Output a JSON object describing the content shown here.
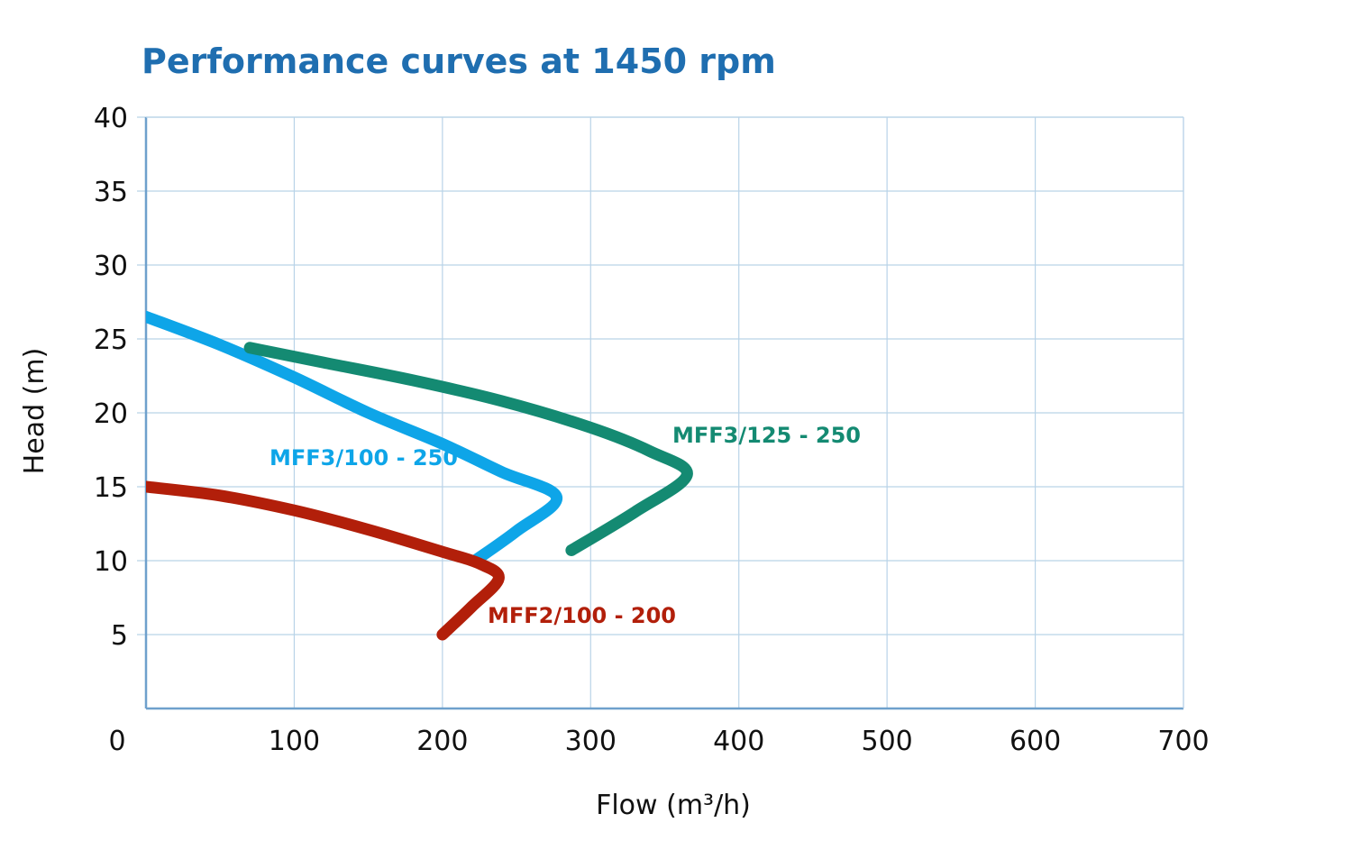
{
  "chart_data": {
    "type": "line",
    "title": "Performance curves at 1450 rpm",
    "xlabel": "Flow (m³/h)",
    "ylabel": "Head (m)",
    "xlim": [
      0,
      700
    ],
    "ylim": [
      0,
      40
    ],
    "x_ticks": [
      0,
      100,
      200,
      300,
      400,
      500,
      600,
      700
    ],
    "y_ticks": [
      5,
      10,
      15,
      20,
      25,
      30,
      35,
      40
    ],
    "grid": true,
    "colors": {
      "title": "#1f6eb0",
      "grid": "#b9d3e8",
      "axis": "#6ea0cc"
    },
    "series": [
      {
        "name": "MFF3/100 - 250",
        "color": "#0ea5e8",
        "points": [
          [
            0,
            26.5
          ],
          [
            50,
            24.6
          ],
          [
            100,
            22.4
          ],
          [
            150,
            20.0
          ],
          [
            200,
            17.9
          ],
          [
            240,
            16.0
          ],
          [
            277,
            14.3
          ],
          [
            250,
            12.0
          ],
          [
            222,
            10.0
          ]
        ]
      },
      {
        "name": "MFF3/125 - 250",
        "color": "#148a72",
        "points": [
          [
            70,
            24.4
          ],
          [
            120,
            23.4
          ],
          [
            180,
            22.2
          ],
          [
            240,
            20.8
          ],
          [
            300,
            19.0
          ],
          [
            340,
            17.4
          ],
          [
            365,
            15.8
          ],
          [
            330,
            13.3
          ],
          [
            287,
            10.7
          ]
        ]
      },
      {
        "name": "MFF2/100 - 200",
        "color": "#b21f0a",
        "points": [
          [
            0,
            15.0
          ],
          [
            50,
            14.4
          ],
          [
            100,
            13.4
          ],
          [
            150,
            12.1
          ],
          [
            200,
            10.6
          ],
          [
            225,
            9.8
          ],
          [
            238,
            8.8
          ],
          [
            220,
            6.9
          ],
          [
            200,
            5.0
          ]
        ]
      }
    ]
  }
}
